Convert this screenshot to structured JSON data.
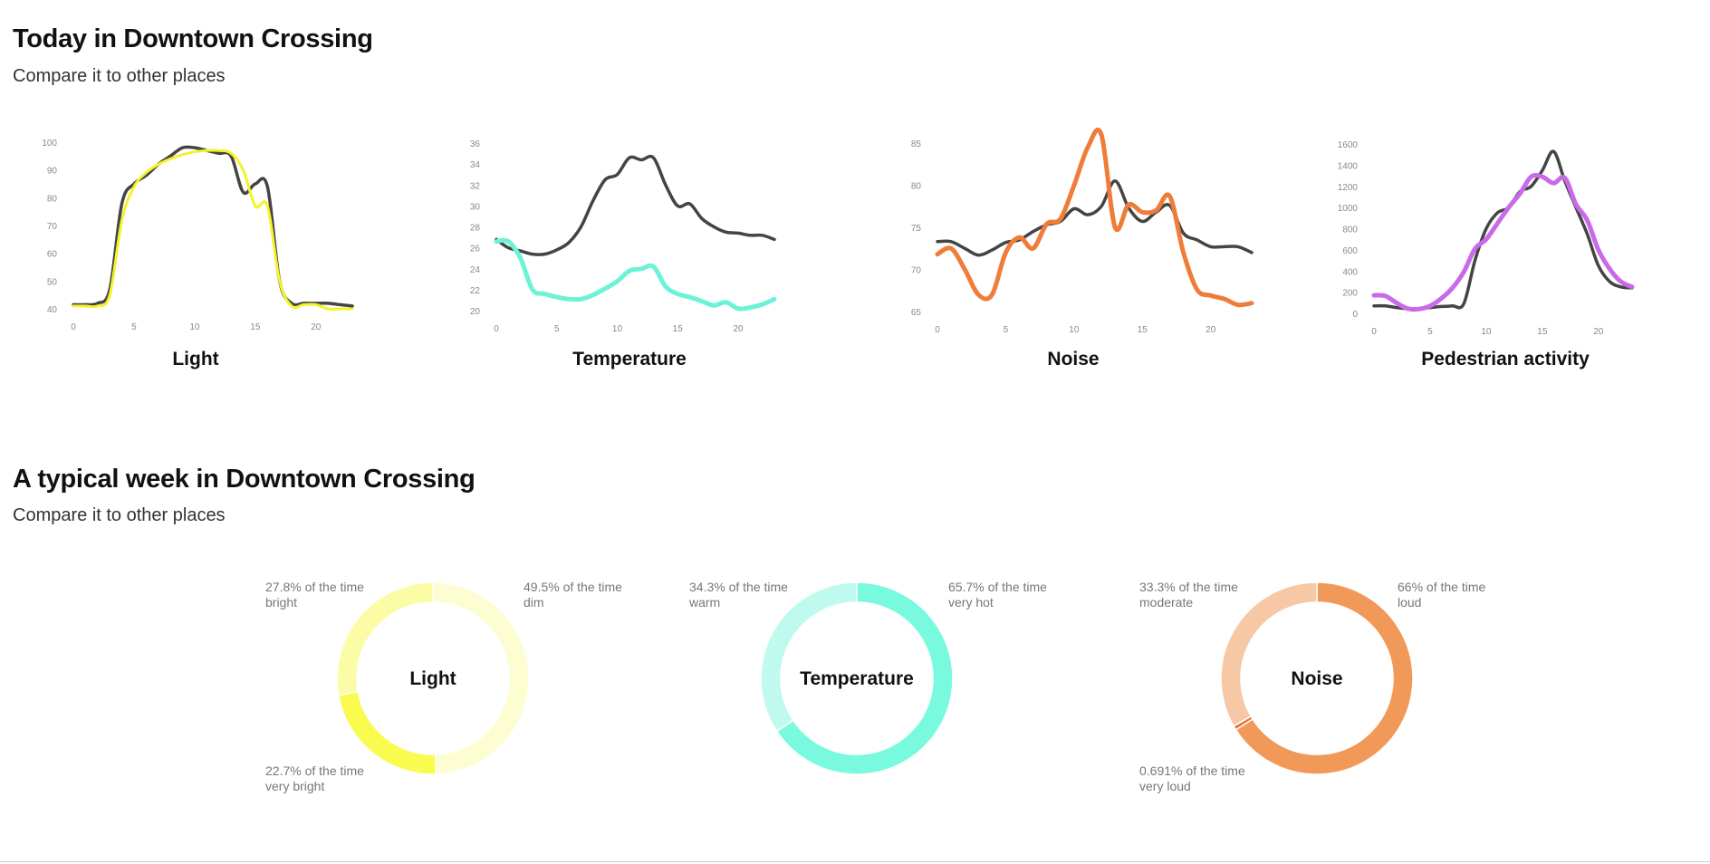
{
  "today": {
    "title": "Today in Downtown Crossing",
    "subtitle": "Compare it to other places"
  },
  "week": {
    "title": "A typical week in Downtown Crossing",
    "subtitle": "Compare it to other places"
  },
  "colors": {
    "comparison_line": "#444444",
    "light": "#f3f32a",
    "temperature": "#6af3d6",
    "noise": "#f07c3a",
    "pedestrian": "#c96ae8"
  },
  "chart_data": [
    {
      "type": "line",
      "title": "Light",
      "xlim": [
        0,
        23
      ],
      "ylim": [
        40,
        100
      ],
      "xticks": [
        0,
        5,
        10,
        15,
        20
      ],
      "yticks": [
        40,
        50,
        60,
        70,
        80,
        90,
        100
      ],
      "x": [
        0,
        1,
        2,
        3,
        4,
        5,
        6,
        7,
        8,
        9,
        10,
        11,
        12,
        13,
        14,
        15,
        16,
        17,
        18,
        19,
        20,
        21,
        22,
        23
      ],
      "series": [
        {
          "color": "#444444",
          "values": [
            41.5,
            41.5,
            42,
            47,
            78,
            85,
            88,
            92,
            95,
            98,
            98,
            97,
            96,
            95,
            82,
            85,
            84,
            50,
            42,
            42,
            42,
            42,
            41.5,
            41
          ]
        },
        {
          "color": "#f3f32a",
          "values": [
            41,
            41,
            41,
            45,
            72,
            84,
            89,
            92,
            94,
            95.5,
            96.5,
            97,
            97,
            96,
            90,
            77,
            77,
            50,
            41,
            41.5,
            41.5,
            40,
            40,
            40
          ]
        }
      ]
    },
    {
      "type": "line",
      "title": "Temperature",
      "xlim": [
        0,
        23
      ],
      "ylim": [
        20,
        36
      ],
      "xticks": [
        0,
        5,
        10,
        15,
        20
      ],
      "yticks": [
        20,
        22,
        24,
        26,
        28,
        30,
        32,
        34,
        36
      ],
      "x": [
        0,
        1,
        2,
        3,
        4,
        5,
        6,
        7,
        8,
        9,
        10,
        11,
        12,
        13,
        14,
        15,
        16,
        17,
        18,
        19,
        20,
        21,
        22,
        23
      ],
      "series": [
        {
          "color": "#444444",
          "values": [
            26.8,
            26,
            25.7,
            25.4,
            25.4,
            25.8,
            26.5,
            28,
            30.5,
            32.5,
            33,
            34.6,
            34.4,
            34.6,
            32,
            30,
            30.2,
            28.8,
            28,
            27.5,
            27.4,
            27.2,
            27.2,
            26.8
          ]
        },
        {
          "color": "#6af3d6",
          "values": [
            26.6,
            26.6,
            25,
            22,
            21.6,
            21.3,
            21.1,
            21.1,
            21.5,
            22.1,
            22.8,
            23.8,
            24,
            24.2,
            22.3,
            21.6,
            21.3,
            20.9,
            20.5,
            20.8,
            20.2,
            20.3,
            20.6,
            21.1
          ]
        }
      ]
    },
    {
      "type": "line",
      "title": "Noise",
      "xlim": [
        0,
        23
      ],
      "ylim": [
        65,
        85
      ],
      "xticks": [
        0,
        5,
        10,
        15,
        20
      ],
      "yticks": [
        65,
        70,
        75,
        80,
        85
      ],
      "x": [
        0,
        1,
        2,
        3,
        4,
        5,
        6,
        7,
        8,
        9,
        10,
        11,
        12,
        13,
        14,
        15,
        16,
        17,
        18,
        19,
        20,
        21,
        22,
        23
      ],
      "series": [
        {
          "color": "#444444",
          "values": [
            73.3,
            73.3,
            72.5,
            71.7,
            72.3,
            73.2,
            73.5,
            74.5,
            75.3,
            75.7,
            77.2,
            76.5,
            77.5,
            80.5,
            77.3,
            75.7,
            76.8,
            77.6,
            74.3,
            73.5,
            72.7,
            72.7,
            72.7,
            72
          ]
        },
        {
          "color": "#f07c3a",
          "values": [
            71.8,
            72.5,
            70,
            67,
            67,
            72,
            73.8,
            72.5,
            75.4,
            76,
            80,
            84.5,
            86,
            75,
            77.7,
            76.8,
            77,
            78.7,
            72,
            67.6,
            66.9,
            66.5,
            65.8,
            66
          ]
        }
      ]
    },
    {
      "type": "line",
      "title": "Pedestrian activity",
      "xlim": [
        0,
        23
      ],
      "ylim": [
        0,
        1600
      ],
      "xticks": [
        0,
        5,
        10,
        15,
        20
      ],
      "yticks": [
        0,
        200,
        400,
        600,
        800,
        1000,
        1200,
        1400,
        1600
      ],
      "x": [
        0,
        1,
        2,
        3,
        4,
        5,
        6,
        7,
        8,
        9,
        10,
        11,
        12,
        13,
        14,
        15,
        16,
        17,
        18,
        19,
        20,
        21,
        22,
        23
      ],
      "series": [
        {
          "color": "#444444",
          "values": [
            70,
            70,
            55,
            45,
            45,
            55,
            65,
            70,
            90,
            500,
            800,
            950,
            1000,
            1150,
            1200,
            1350,
            1530,
            1250,
            1000,
            750,
            450,
            300,
            250,
            240
          ]
        },
        {
          "color": "#c96ae8",
          "values": [
            170,
            165,
            100,
            45,
            40,
            70,
            140,
            240,
            390,
            610,
            700,
            850,
            1000,
            1130,
            1290,
            1290,
            1230,
            1280,
            1030,
            880,
            600,
            420,
            300,
            250
          ]
        }
      ]
    },
    {
      "type": "pie",
      "title": "Light",
      "slices": [
        {
          "label": "dim",
          "value": 49.5,
          "text": "49.5% of the time",
          "color": "#fdfdd2"
        },
        {
          "label": "very bright",
          "value": 22.7,
          "text": "22.7% of the time",
          "color": "#f9fb4e"
        },
        {
          "label": "bright",
          "value": 27.8,
          "text": "27.8% of the time",
          "color": "#fcfca6"
        }
      ]
    },
    {
      "type": "pie",
      "title": "Temperature",
      "slices": [
        {
          "label": "very hot",
          "value": 65.7,
          "text": "65.7% of the time",
          "color": "#79fade"
        },
        {
          "label": "warm",
          "value": 34.3,
          "text": "34.3% of the time",
          "color": "#c0faee"
        }
      ]
    },
    {
      "type": "pie",
      "title": "Noise",
      "slices": [
        {
          "label": "loud",
          "value": 66,
          "text": "66% of the time",
          "color": "#f19959"
        },
        {
          "label": "very loud",
          "value": 0.691,
          "text": "0.691% of the time",
          "color": "#e8743a"
        },
        {
          "label": "moderate",
          "value": 33.3,
          "text": "33.3% of the time",
          "color": "#f6c8a5"
        }
      ]
    }
  ]
}
